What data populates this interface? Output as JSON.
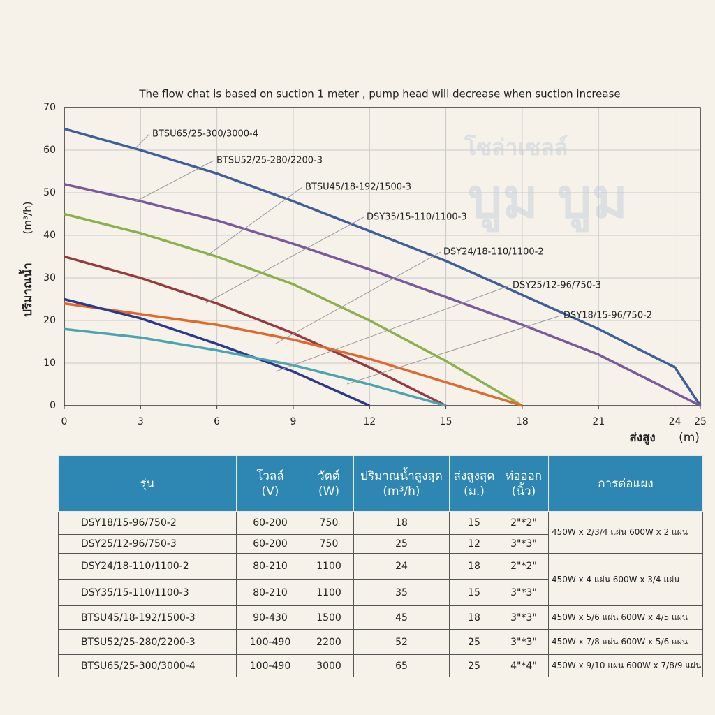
{
  "chart_data": {
    "type": "line",
    "title": "The flow chat is based on suction 1 meter , pump head will decrease when suction increase",
    "y_label": "ปริมาณน้ำ",
    "y_unit": "(m³/h)",
    "x_label": "ส่งสูง",
    "x_unit": "(m)",
    "x": [
      0,
      3,
      6,
      9,
      12,
      15,
      18,
      21,
      24,
      25
    ],
    "xlim": [
      0,
      25
    ],
    "xticks": [
      0,
      3,
      6,
      9,
      12,
      15,
      18,
      21,
      24,
      25
    ],
    "ylim": [
      0,
      70
    ],
    "yticks": [
      0,
      10,
      20,
      30,
      40,
      50,
      60,
      70
    ],
    "grid": true,
    "series": [
      {
        "name": "BTSU65/25-300/3000-4",
        "color": "#3e5f98",
        "values": [
          65,
          60,
          54.5,
          48,
          41,
          34,
          26,
          18,
          9,
          0
        ]
      },
      {
        "name": "BTSU52/25-280/2200-3",
        "color": "#7a5a9c",
        "values": [
          52,
          48,
          43.5,
          38,
          32,
          25.5,
          19,
          12,
          3,
          0
        ]
      },
      {
        "name": "BTSU45/18-192/1500-3",
        "color": "#8cb04e",
        "values": [
          45,
          40.5,
          35,
          28.5,
          20,
          10.5,
          0,
          null,
          null,
          null
        ]
      },
      {
        "name": "DSY35/15-110/1100-3",
        "color": "#963a3f",
        "values": [
          35,
          30,
          24,
          17,
          9,
          0,
          null,
          null,
          null,
          null
        ]
      },
      {
        "name": "DSY24/18-110/1100-2",
        "color": "#e0692d",
        "values": [
          24,
          21.5,
          19,
          15.5,
          11,
          5.5,
          0,
          null,
          null,
          null
        ]
      },
      {
        "name": "DSY25/12-96/750-3",
        "color": "#2d3a8c",
        "values": [
          25,
          20.5,
          14.5,
          8,
          0,
          null,
          null,
          null,
          null,
          null
        ]
      },
      {
        "name": "DSY18/15-96/750-2",
        "color": "#4ca4b0",
        "values": [
          18,
          16,
          13,
          9.5,
          5,
          0,
          null,
          null,
          null,
          null
        ]
      }
    ]
  },
  "table": {
    "header": [
      [
        "รุ่น"
      ],
      [
        "โวลล์",
        "(V)"
      ],
      [
        "วัตต์",
        "(W)"
      ],
      [
        "ปริมาณน้ำสูงสุด",
        "(m³/h)"
      ],
      [
        "ส่งสูงสุด",
        "(ม.)"
      ],
      [
        "ท่อออก",
        "(นิ้ว)"
      ],
      [
        "การต่อแผง"
      ]
    ],
    "rows": [
      [
        "DSY18/15-96/750-2",
        "60-200",
        "750",
        "18",
        "15",
        "2\"*2\"",
        "450W x 2/3/4 แผ่น   600W x 2 แผ่น"
      ],
      [
        "DSY25/12-96/750-3",
        "60-200",
        "750",
        "25",
        "12",
        "3\"*3\"",
        null
      ],
      [
        "DSY24/18-110/1100-2",
        "80-210",
        "1100",
        "24",
        "18",
        "2\"*2\"",
        "450W x 4 แผ่น   600W x 3/4 แผ่น"
      ],
      [
        "DSY35/15-110/1100-3",
        "80-210",
        "1100",
        "35",
        "15",
        "3\"*3\"",
        null
      ],
      [
        "BTSU45/18-192/1500-3",
        "90-430",
        "1500",
        "45",
        "18",
        "3\"*3\"",
        "450W x 5/6 แผ่น   600W x 4/5 แผ่น"
      ],
      [
        "BTSU52/25-280/2200-3",
        "100-490",
        "2200",
        "52",
        "25",
        "3\"*3\"",
        "450W x 7/8 แผ่น   600W x 5/6 แผ่น"
      ],
      [
        "BTSU65/25-300/3000-4",
        "100-490",
        "3000",
        "65",
        "25",
        "4\"*4\"",
        "450W x 9/10 แผ่น   600W x 7/8/9 แผ่น"
      ]
    ]
  },
  "watermark": [
    "โซล่าเซลล์",
    "บูม บูม"
  ]
}
